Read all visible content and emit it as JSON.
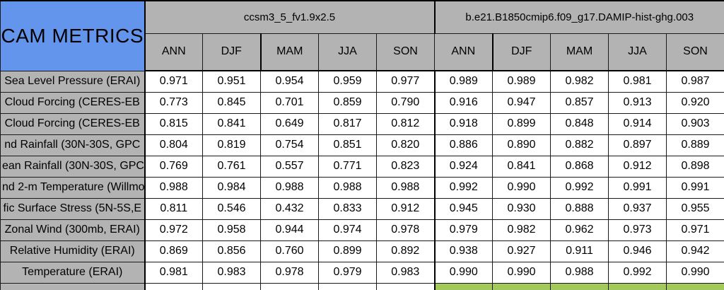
{
  "colors": {
    "header_blue": "#6495ED",
    "header_gray": "#B3B3B3",
    "good_green": "#A3C95A",
    "bad_red": "#F6726E",
    "cell_white": "#FFFFFF"
  },
  "chart_data": {
    "type": "table",
    "title": "CAM METRICS",
    "groups": [
      {
        "name": "ccsm3_5_fv1.9x2.5",
        "seasons": [
          "ANN",
          "DJF",
          "MAM",
          "JJA",
          "SON"
        ]
      },
      {
        "name": "b.e21.B1850cmip6.f09_g17.DAMIP-hist-ghg.003",
        "seasons": [
          "ANN",
          "DJF",
          "MAM",
          "JJA",
          "SON"
        ]
      }
    ],
    "rows": [
      {
        "label": "Sea Level Pressure (ERAI)",
        "left": [
          "0.971",
          "0.951",
          "0.954",
          "0.959",
          "0.977"
        ],
        "right": [
          "0.989",
          "0.989",
          "0.982",
          "0.981",
          "0.987"
        ],
        "right_status": [
          "good",
          "good",
          "good",
          "good",
          "good"
        ]
      },
      {
        "label": "Cloud Forcing (CERES-EB",
        "left": [
          "0.773",
          "0.845",
          "0.701",
          "0.859",
          "0.790"
        ],
        "right": [
          "0.916",
          "0.947",
          "0.857",
          "0.913",
          "0.920"
        ],
        "right_status": [
          "good",
          "good",
          "good",
          "good",
          "good"
        ]
      },
      {
        "label": "Cloud Forcing (CERES-EB",
        "left": [
          "0.815",
          "0.841",
          "0.649",
          "0.817",
          "0.812"
        ],
        "right": [
          "0.918",
          "0.899",
          "0.848",
          "0.914",
          "0.903"
        ],
        "right_status": [
          "good",
          "good",
          "good",
          "good",
          "good"
        ]
      },
      {
        "label": "nd Rainfall (30N-30S, GPC",
        "left": [
          "0.804",
          "0.819",
          "0.754",
          "0.851",
          "0.820"
        ],
        "right": [
          "0.886",
          "0.890",
          "0.882",
          "0.897",
          "0.889"
        ],
        "right_status": [
          "good",
          "good",
          "good",
          "good",
          "good"
        ]
      },
      {
        "label": "ean Rainfall (30N-30S, GPC",
        "left": [
          "0.769",
          "0.761",
          "0.557",
          "0.771",
          "0.823"
        ],
        "right": [
          "0.924",
          "0.841",
          "0.868",
          "0.912",
          "0.898"
        ],
        "right_status": [
          "good",
          "good",
          "good",
          "good",
          "good"
        ]
      },
      {
        "label": "nd 2-m Temperature (Willmo",
        "left": [
          "0.988",
          "0.984",
          "0.988",
          "0.988",
          "0.988"
        ],
        "right": [
          "0.992",
          "0.990",
          "0.992",
          "0.991",
          "0.991"
        ],
        "right_status": [
          "good",
          "good",
          "good",
          "good",
          "good"
        ]
      },
      {
        "label": "fic Surface Stress (5N-5S,E",
        "left": [
          "0.811",
          "0.546",
          "0.432",
          "0.833",
          "0.912"
        ],
        "right": [
          "0.945",
          "0.930",
          "0.888",
          "0.937",
          "0.955"
        ],
        "right_status": [
          "good",
          "good",
          "good",
          "good",
          "good"
        ]
      },
      {
        "label": "Zonal Wind (300mb, ERAI)",
        "left": [
          "0.972",
          "0.958",
          "0.944",
          "0.974",
          "0.978"
        ],
        "right": [
          "0.979",
          "0.982",
          "0.962",
          "0.973",
          "0.971"
        ],
        "right_status": [
          "good",
          "good",
          "good",
          "bad",
          "bad"
        ]
      },
      {
        "label": "Relative Humidity (ERAI)",
        "left": [
          "0.869",
          "0.856",
          "0.760",
          "0.899",
          "0.892"
        ],
        "right": [
          "0.938",
          "0.927",
          "0.911",
          "0.946",
          "0.942"
        ],
        "right_status": [
          "good",
          "good",
          "good",
          "good",
          "good"
        ]
      },
      {
        "label": "Temperature (ERAI)",
        "left": [
          "0.981",
          "0.983",
          "0.978",
          "0.979",
          "0.983"
        ],
        "right": [
          "0.990",
          "0.990",
          "0.988",
          "0.992",
          "0.990"
        ],
        "right_status": [
          "good",
          "good",
          "good",
          "good",
          "good"
        ]
      }
    ]
  }
}
